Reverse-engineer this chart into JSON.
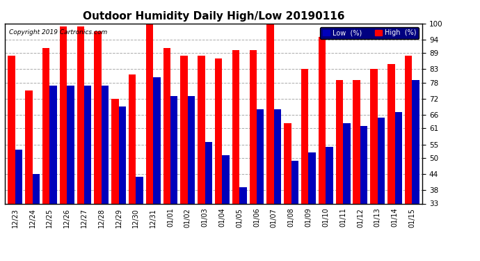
{
  "title": "Outdoor Humidity Daily High/Low 20190116",
  "copyright": "Copyright 2019 Cartronics.com",
  "categories": [
    "12/23",
    "12/24",
    "12/25",
    "12/26",
    "12/27",
    "12/28",
    "12/29",
    "12/30",
    "12/31",
    "01/01",
    "01/02",
    "01/03",
    "01/04",
    "01/05",
    "01/06",
    "01/07",
    "01/08",
    "01/09",
    "01/10",
    "01/11",
    "01/12",
    "01/13",
    "01/14",
    "01/15"
  ],
  "high": [
    88,
    75,
    91,
    99,
    99,
    97,
    72,
    81,
    100,
    91,
    88,
    88,
    87,
    90,
    90,
    100,
    63,
    83,
    95,
    79,
    79,
    83,
    85,
    88
  ],
  "low": [
    53,
    44,
    77,
    77,
    77,
    77,
    69,
    43,
    80,
    73,
    73,
    56,
    51,
    39,
    68,
    68,
    49,
    52,
    54,
    63,
    62,
    65,
    67,
    79
  ],
  "high_color": "#FF0000",
  "low_color": "#0000BB",
  "bg_color": "#FFFFFF",
  "plot_bg_color": "#FFFFFF",
  "grid_color": "#AAAAAA",
  "ylim_min": 33,
  "ylim_max": 100,
  "yticks": [
    33,
    38,
    44,
    50,
    55,
    61,
    66,
    72,
    78,
    83,
    89,
    94,
    100
  ],
  "title_fontsize": 11,
  "legend_labels": [
    "Low  (%)",
    "High  (%)"
  ],
  "bar_width": 0.42
}
